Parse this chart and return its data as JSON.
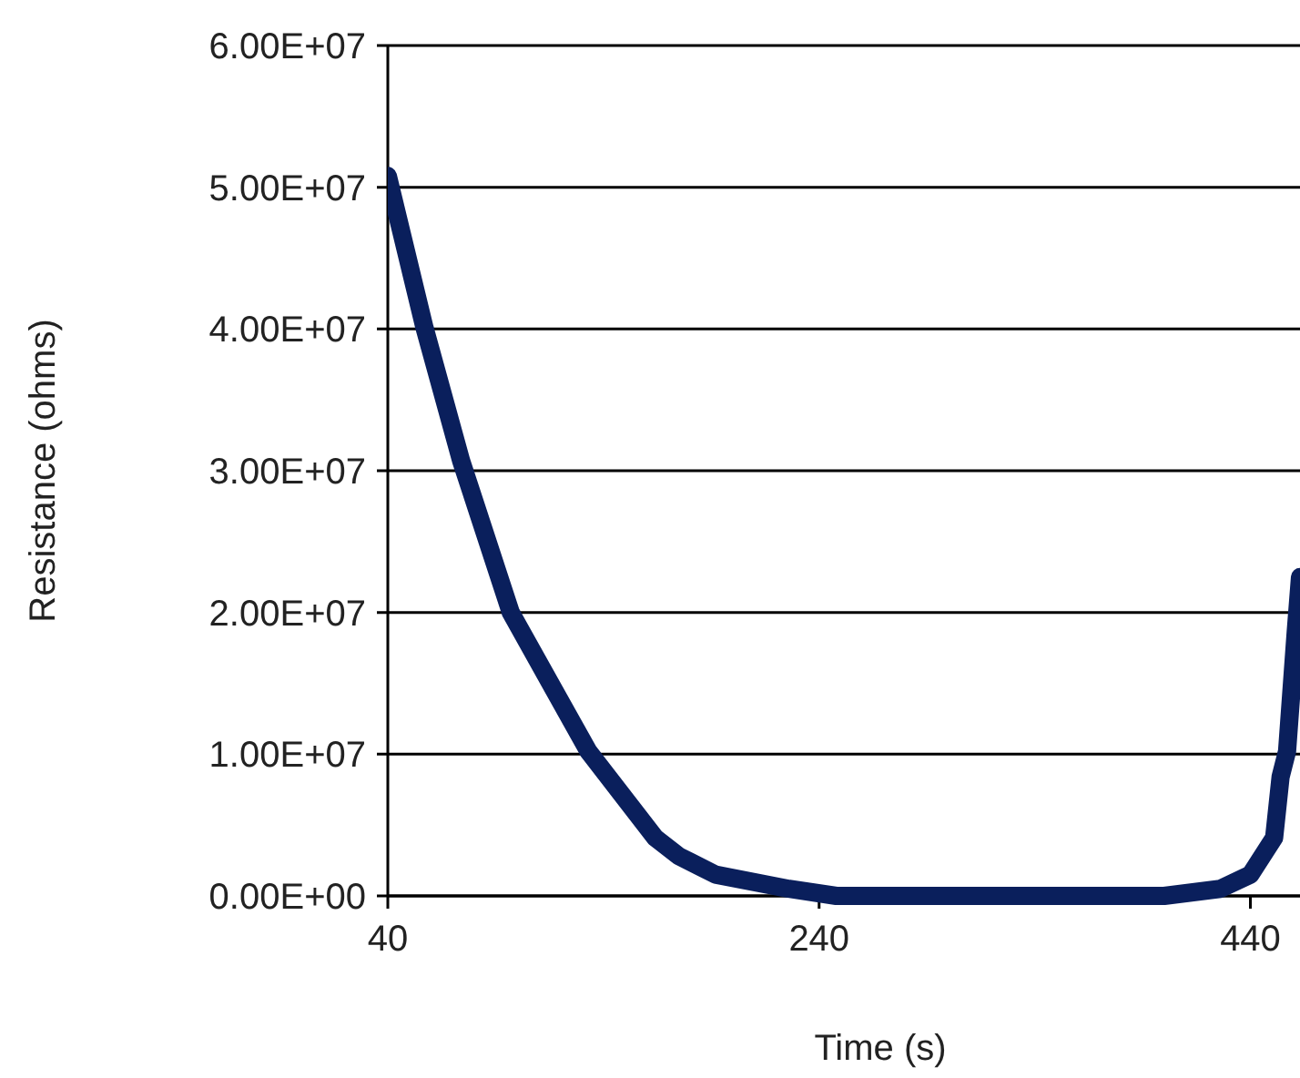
{
  "chart_data": {
    "type": "line",
    "xlabel": "Time (s)",
    "ylabel": "Resistance (ohms)",
    "x": [
      40,
      57,
      74,
      97,
      133,
      164,
      175,
      192,
      226,
      248,
      300,
      350,
      400,
      426,
      440,
      451,
      454,
      457,
      461,
      463
    ],
    "series": [
      {
        "color": "#0a1f5c",
        "values": [
          50800000,
          40100000,
          30700000,
          20000000,
          10200000,
          4100000,
          2800000,
          1500000,
          500000,
          0,
          0,
          0,
          0,
          500000,
          1500000,
          4100000,
          8400000,
          10200000,
          18600000,
          22500000
        ]
      }
    ],
    "xlim": [
      40,
      463
    ],
    "xticks": [
      40,
      240,
      440
    ],
    "ylim": [
      0,
      60000000
    ],
    "yticks": [
      {
        "value": 0,
        "label": "0.00E+00"
      },
      {
        "value": 10000000,
        "label": "1.00E+07"
      },
      {
        "value": 20000000,
        "label": "2.00E+07"
      },
      {
        "value": 30000000,
        "label": "3.00E+07"
      },
      {
        "value": 40000000,
        "label": "4.00E+07"
      },
      {
        "value": 50000000,
        "label": "5.00E+07"
      },
      {
        "value": 60000000,
        "label": "6.00E+07"
      }
    ],
    "grid": "y",
    "marker": "none",
    "line_style": "solid"
  }
}
